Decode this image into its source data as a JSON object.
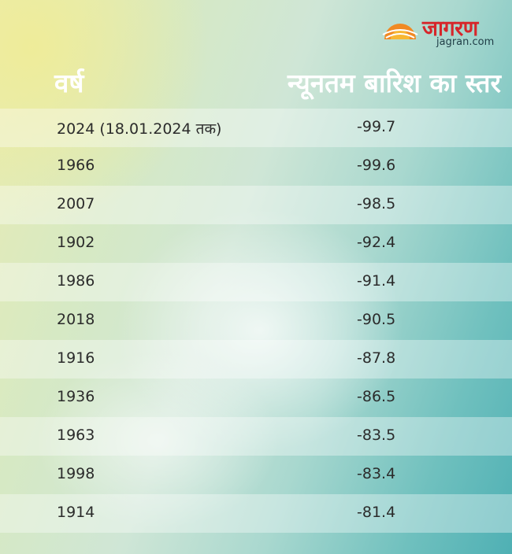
{
  "header": {
    "logo_brand": "जागरण",
    "logo_domain": "jagran.com",
    "col_year": "वर्ष",
    "col_level": "न्यूनतम बारिश का स्तर"
  },
  "rows": [
    {
      "year": "2024 (18.01.2024 तक)",
      "value": "-99.7"
    },
    {
      "year": "1966",
      "value": "-99.6"
    },
    {
      "year": "2007",
      "value": "-98.5"
    },
    {
      "year": "1902",
      "value": "-92.4"
    },
    {
      "year": "1986",
      "value": "-91.4"
    },
    {
      "year": "2018",
      "value": "-90.5"
    },
    {
      "year": "1916",
      "value": "-87.8"
    },
    {
      "year": "1936",
      "value": "-86.5"
    },
    {
      "year": "1963",
      "value": "-83.5"
    },
    {
      "year": "1998",
      "value": "-83.4"
    },
    {
      "year": "1914",
      "value": "-81.4"
    }
  ],
  "colors": {
    "brand_red": "#d6262a",
    "sun_orange": "#f08a24",
    "text_dark": "#2b2b2b",
    "header_white": "#ffffff"
  }
}
